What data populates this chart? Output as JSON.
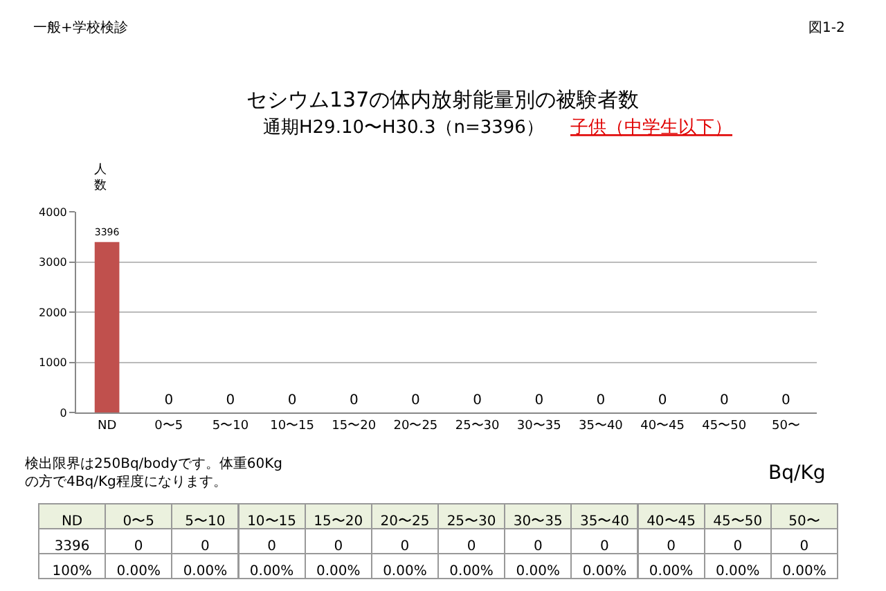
{
  "chart_data": {
    "type": "bar",
    "title": "セシウム137の体内放射能量別の被験者数",
    "subtitle": "通期H29.10〜H30.3（n=3396）",
    "ylabel": "人数",
    "categories": [
      "ND",
      "0〜5",
      "5〜10",
      "10〜15",
      "15〜20",
      "20〜25",
      "25〜30",
      "30〜35",
      "35〜40",
      "40〜45",
      "45〜50",
      "50〜"
    ],
    "values": [
      3396,
      0,
      0,
      0,
      0,
      0,
      0,
      0,
      0,
      0,
      0,
      0
    ],
    "color": "#c0504d",
    "ylim": [
      0,
      4000
    ],
    "yticks": [
      0,
      1000,
      2000,
      3000,
      4000
    ],
    "grid": "y",
    "data_labels": true,
    "annotations": [
      "一般+学校検診",
      "図1-2",
      "子供（中学生以下）",
      "検出限界は250Bq/bodyです。体重60Kg\nの方で4Bq/Kg程度になります。",
      "Bq/Kg",
      "3396",
      "0",
      "0",
      "0",
      "0",
      "0",
      "0",
      "0",
      "0",
      "0",
      "0",
      "0",
      "100%",
      "0.00%",
      "0.00%",
      "0.00%",
      "0.00%",
      "0.00%",
      "0.00%",
      "0.00%",
      "0.00%",
      "0.00%",
      "0.00%",
      "0.00%"
    ]
  }
}
